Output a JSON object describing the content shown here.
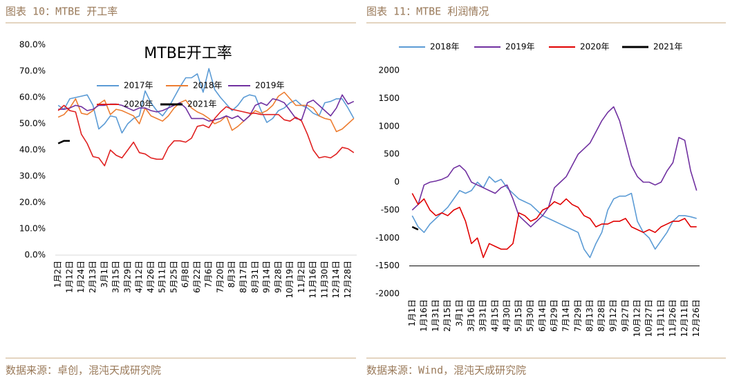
{
  "captions": [
    "图表 10：MTBE 开工率",
    "图表 11：MTBE 利润情况"
  ],
  "sources": [
    "数据来源：卓创，混沌天成研究院",
    "数据来源：Wind，混沌天成研究院"
  ],
  "chart_data": [
    {
      "type": "line",
      "title": "MTBE开工率",
      "categories": [
        "1月2日",
        null,
        "1月12日",
        null,
        "1月24日",
        null,
        "2月13日",
        null,
        "3月1日",
        null,
        "3月15日",
        null,
        "3月29日",
        null,
        "4月12日",
        null,
        "4月26日",
        null,
        "5月11日",
        null,
        "5月25日",
        null,
        "6月8日",
        null,
        "6月22日",
        null,
        "7月6日",
        null,
        "7月20日",
        null,
        "8月3日",
        null,
        "8月17日",
        null,
        "8月31日",
        null,
        "9月14日",
        null,
        "9月28日",
        null,
        "10月19日",
        null,
        "11月2日",
        null,
        "11月16日",
        null,
        "11月30日",
        null,
        "12月14日",
        null,
        "12月28日",
        null
      ],
      "series": [
        {
          "name": "2017年",
          "color": "#5b9bd5",
          "values": [
            57,
            55.5,
            59.5,
            60,
            60.5,
            61,
            57,
            48,
            50,
            53,
            52.5,
            46.5,
            50,
            52,
            53,
            62.5,
            58,
            55,
            53,
            56,
            60,
            64,
            67.5,
            67.5,
            69,
            62,
            71,
            63,
            60,
            57.5,
            55,
            57,
            60,
            61,
            60.5,
            55,
            50.5,
            52,
            55,
            56,
            58,
            59,
            57,
            56,
            54,
            53,
            58,
            58.5,
            59.5,
            59.5,
            56,
            52
          ]
        },
        {
          "name": "2018年",
          "color": "#ed7d31",
          "values": [
            52.5,
            53.5,
            56,
            59.5,
            54,
            53.5,
            55,
            57.5,
            59,
            53.5,
            55.5,
            55,
            54,
            53,
            50,
            56,
            53,
            52,
            51,
            53,
            56,
            58,
            59,
            56,
            54.5,
            53.5,
            52,
            50,
            51,
            53,
            47.5,
            49,
            51,
            53,
            55,
            54,
            55,
            57,
            60.5,
            62,
            59.5,
            57,
            57,
            57,
            56,
            53,
            52,
            51.5,
            47,
            48,
            50,
            52
          ]
        },
        {
          "name": "2019年",
          "color": "#7030a0",
          "values": [
            55.5,
            55.5,
            56,
            57,
            56.5,
            55,
            55.5,
            57,
            57,
            57.5,
            57.5,
            57,
            56,
            55,
            56,
            56,
            55,
            54.5,
            55,
            56,
            57,
            58,
            56,
            52,
            52,
            52,
            51,
            51.5,
            52,
            53,
            52,
            53,
            51,
            53,
            57,
            58,
            57,
            59.5,
            59,
            58,
            55,
            52,
            51.5,
            58,
            59,
            57,
            55,
            53,
            56,
            61,
            57.5,
            58.5
          ]
        },
        {
          "name": "2020年",
          "color": "#e02020",
          "values": [
            55,
            57,
            55,
            54.5,
            46,
            42.5,
            37.5,
            37,
            34,
            40,
            38,
            37,
            40,
            43,
            39,
            38.5,
            37,
            36.5,
            36.5,
            41,
            43.5,
            43.5,
            43,
            44.5,
            49,
            49.5,
            48.5,
            52,
            54.5,
            56.5,
            55.5,
            55,
            54.5,
            54,
            54,
            53.5,
            53.5,
            53.5,
            53.5,
            51.5,
            51,
            52.5,
            51,
            46,
            40,
            37,
            37.5,
            37,
            38.5,
            41,
            40.5,
            39
          ]
        },
        {
          "name": "2021年",
          "color": "#000000",
          "values": [
            42.5,
            43.5,
            43.5,
            null,
            null,
            null,
            null,
            null,
            null,
            null,
            null,
            null,
            null,
            null,
            null,
            null,
            null,
            null,
            null,
            null,
            null,
            null,
            null,
            null,
            null,
            null,
            null,
            null,
            null,
            null,
            null,
            null,
            null,
            null,
            null,
            null,
            null,
            null,
            null,
            null,
            null,
            null,
            null,
            null,
            null,
            null,
            null,
            null,
            null,
            null,
            null,
            null
          ]
        }
      ],
      "ylim": [
        0,
        80
      ],
      "yticks": [
        {
          "value": 0,
          "label": "0.0%"
        },
        {
          "value": 10,
          "label": "10.0%"
        },
        {
          "value": 20,
          "label": "20.0%"
        },
        {
          "value": 30,
          "label": "30.0%"
        },
        {
          "value": 40,
          "label": "40.0%"
        },
        {
          "value": 50,
          "label": "50.0%"
        },
        {
          "value": 60,
          "label": "60.0%"
        },
        {
          "value": 70,
          "label": "70.0%"
        },
        {
          "value": 80,
          "label": "80.0%"
        }
      ],
      "grid": false
    },
    {
      "type": "line",
      "categories": [
        "1月1日",
        null,
        "1月16日",
        null,
        "1月31日",
        null,
        "2月15日",
        null,
        "3月1日",
        null,
        "3月16日",
        null,
        "3月31日",
        null,
        "4月15日",
        null,
        "4月30日",
        null,
        "5月15日",
        null,
        "5月30日",
        null,
        "6月14日",
        null,
        "6月29日",
        null,
        "7月14日",
        null,
        "7月29日",
        null,
        "8月13日",
        null,
        "8月28日",
        null,
        "9月12日",
        null,
        "9月27日",
        null,
        "10月12日",
        null,
        "10月27日",
        null,
        "11月11日",
        null,
        "11月26日",
        null,
        "12月11日",
        null,
        "12月26日"
      ],
      "series": [
        {
          "name": "2018年",
          "color": "#5b9bd5",
          "values": [
            -600,
            -800,
            -900,
            -750,
            -650,
            -550,
            -450,
            -300,
            -150,
            -200,
            -150,
            0,
            -100,
            100,
            0,
            50,
            -100,
            -200,
            -300,
            -350,
            -400,
            -500,
            -600,
            -650,
            -700,
            -750,
            -800,
            -850,
            -900,
            -1200,
            -1350,
            -1100,
            -900,
            -500,
            -300,
            -250,
            -250,
            -200,
            -700,
            -900,
            -1000,
            -1200,
            -1050,
            -900,
            -700,
            -600,
            -600,
            -620,
            -650
          ]
        },
        {
          "name": "2019年",
          "color": "#7030a0",
          "values": [
            -500,
            -400,
            -50,
            0,
            20,
            50,
            100,
            250,
            300,
            200,
            0,
            -50,
            -100,
            -150,
            -200,
            -100,
            -50,
            -300,
            -600,
            -700,
            -800,
            -700,
            -600,
            -450,
            -100,
            0,
            100,
            300,
            500,
            600,
            700,
            900,
            1100,
            1250,
            1350,
            1100,
            700,
            300,
            100,
            0,
            0,
            -50,
            0,
            200,
            350,
            800,
            750,
            200,
            -150
          ]
        },
        {
          "name": "2020年",
          "color": "#e00000",
          "values": [
            -200,
            -400,
            -300,
            -500,
            -600,
            -550,
            -600,
            -500,
            -450,
            -700,
            -1100,
            -1000,
            -1350,
            -1100,
            -1150,
            -1200,
            -1200,
            -1100,
            -550,
            -600,
            -700,
            -650,
            -500,
            -450,
            -350,
            -400,
            -300,
            -400,
            -450,
            -600,
            -650,
            -800,
            -750,
            -750,
            -700,
            -700,
            -650,
            -800,
            -850,
            -900,
            -850,
            -900,
            -800,
            -750,
            -700,
            -700,
            -650,
            -800,
            -800
          ]
        },
        {
          "name": "2021年",
          "color": "#000000",
          "values": [
            -800,
            -850,
            null,
            null,
            null,
            null,
            null,
            null,
            null,
            null,
            null,
            null,
            null,
            null,
            null,
            null,
            null,
            null,
            null,
            null,
            null,
            null,
            null,
            null,
            null,
            null,
            null,
            null,
            null,
            null,
            null,
            null,
            null,
            null,
            null,
            null,
            null,
            null,
            null,
            null,
            null,
            null,
            null,
            null,
            null,
            null,
            null,
            null,
            null
          ]
        }
      ],
      "ylim": [
        -2000,
        2000
      ],
      "yticks": [
        -2000,
        -1500,
        -1000,
        -500,
        0,
        500,
        1000,
        1500,
        2000
      ],
      "x_axis_value": -1500,
      "grid": false
    }
  ]
}
